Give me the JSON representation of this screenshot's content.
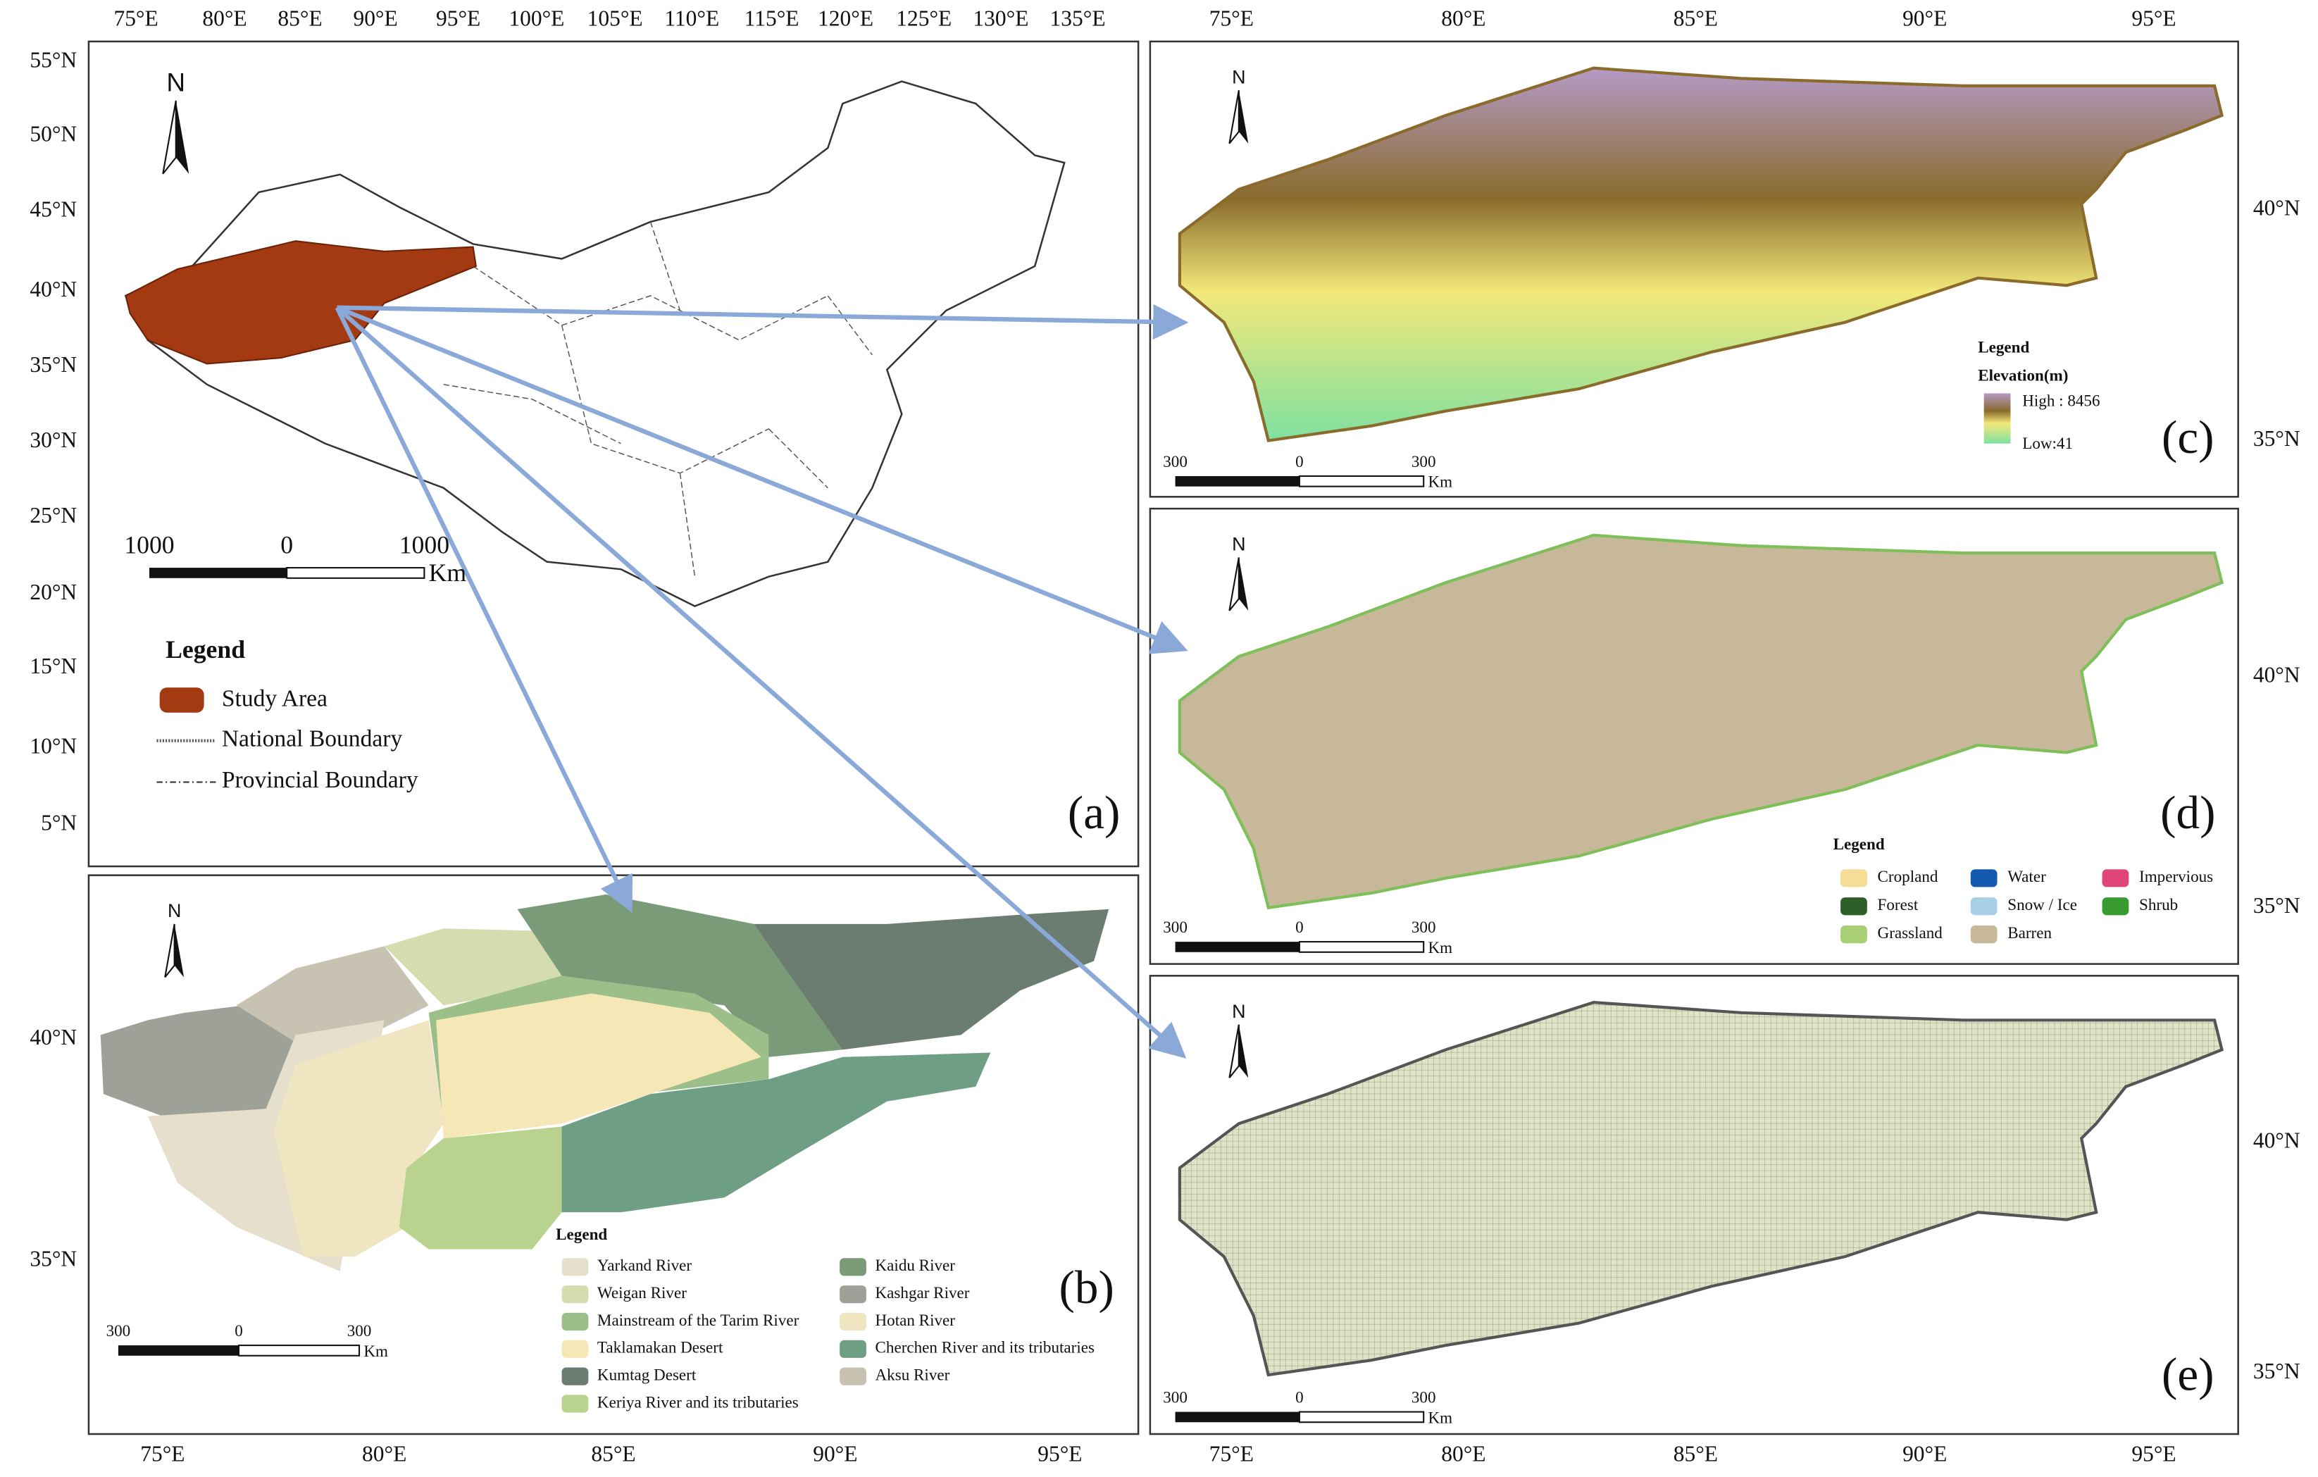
{
  "axes": {
    "top_a": [
      "75°E",
      "80°E",
      "85°E",
      "90°E",
      "95°E",
      "100°E",
      "105°E",
      "110°E",
      "115°E",
      "120°E",
      "125°E",
      "130°E",
      "135°E"
    ],
    "left_a": [
      "55°N",
      "50°N",
      "45°N",
      "40°N",
      "35°N",
      "30°N",
      "25°N",
      "20°N",
      "15°N",
      "10°N",
      "5°N"
    ],
    "left_b": [
      "40°N",
      "35°N"
    ],
    "bottom_b": [
      "75°E",
      "80°E",
      "85°E",
      "90°E",
      "95°E"
    ],
    "top_right": [
      "75°E",
      "80°E",
      "85°E",
      "90°E",
      "95°E"
    ],
    "bottom_right": [
      "75°E",
      "80°E",
      "85°E",
      "90°E",
      "95°E"
    ],
    "right_c": [
      "40°N",
      "35°N"
    ],
    "right_d": [
      "40°N",
      "35°N"
    ],
    "right_e": [
      "40°N",
      "35°N"
    ]
  },
  "panel_a": {
    "label": "(a)",
    "north": "N",
    "scale": [
      "1000",
      "0",
      "1000",
      "Km"
    ],
    "legend": {
      "title": "Legend",
      "items": [
        "Study Area",
        "National Boundary",
        "Provincial Boundary"
      ]
    }
  },
  "panel_b": {
    "label": "(b)",
    "north": "N",
    "scale": [
      "300",
      "0",
      "300",
      "Km"
    ],
    "legend": {
      "title": "Legend",
      "items": [
        {
          "name": "Yarkand River",
          "color": "#e6dfcb"
        },
        {
          "name": "Weigan River",
          "color": "#d5dcb0"
        },
        {
          "name": "Mainstream of the Tarim River",
          "color": "#9cbf8a"
        },
        {
          "name": "Taklamakan Desert",
          "color": "#f6e7b6"
        },
        {
          "name": "Kumtag Desert",
          "color": "#6b7d70"
        },
        {
          "name": "Keriya River and its tributaries",
          "color": "#b9d38f"
        },
        {
          "name": "Kaidu River",
          "color": "#7a9a78"
        },
        {
          "name": "Kashgar River",
          "color": "#9ea197"
        },
        {
          "name": "Hotan River",
          "color": "#efe5c0"
        },
        {
          "name": "Cherchen River and its tributaries",
          "color": "#6e9e84"
        },
        {
          "name": "Aksu River",
          "color": "#c8c2b2"
        }
      ]
    }
  },
  "panel_c": {
    "label": "(c)",
    "north": "N",
    "scale": [
      "300",
      "0",
      "300",
      "Km"
    ],
    "legend": {
      "title": "Legend",
      "subtitle": "Elevation(m)",
      "high": "High : 8456",
      "low": "Low:41"
    }
  },
  "panel_d": {
    "label": "(d)",
    "north": "N",
    "scale": [
      "300",
      "0",
      "300",
      "Km"
    ],
    "legend": {
      "title": "Legend",
      "items": [
        {
          "name": "Cropland",
          "color": "#f5dd96"
        },
        {
          "name": "Forest",
          "color": "#2e5e2a"
        },
        {
          "name": "Grassland",
          "color": "#a9cf74"
        },
        {
          "name": "Water",
          "color": "#1459b0"
        },
        {
          "name": "Snow / Ice",
          "color": "#a8cfe6"
        },
        {
          "name": "Barren",
          "color": "#c8b89a"
        },
        {
          "name": "Impervious",
          "color": "#e0457a"
        },
        {
          "name": "Shrub",
          "color": "#3a9a32"
        }
      ]
    }
  },
  "panel_e": {
    "label": "(e)",
    "north": "N",
    "scale": [
      "300",
      "0",
      "300",
      "Km"
    ]
  }
}
